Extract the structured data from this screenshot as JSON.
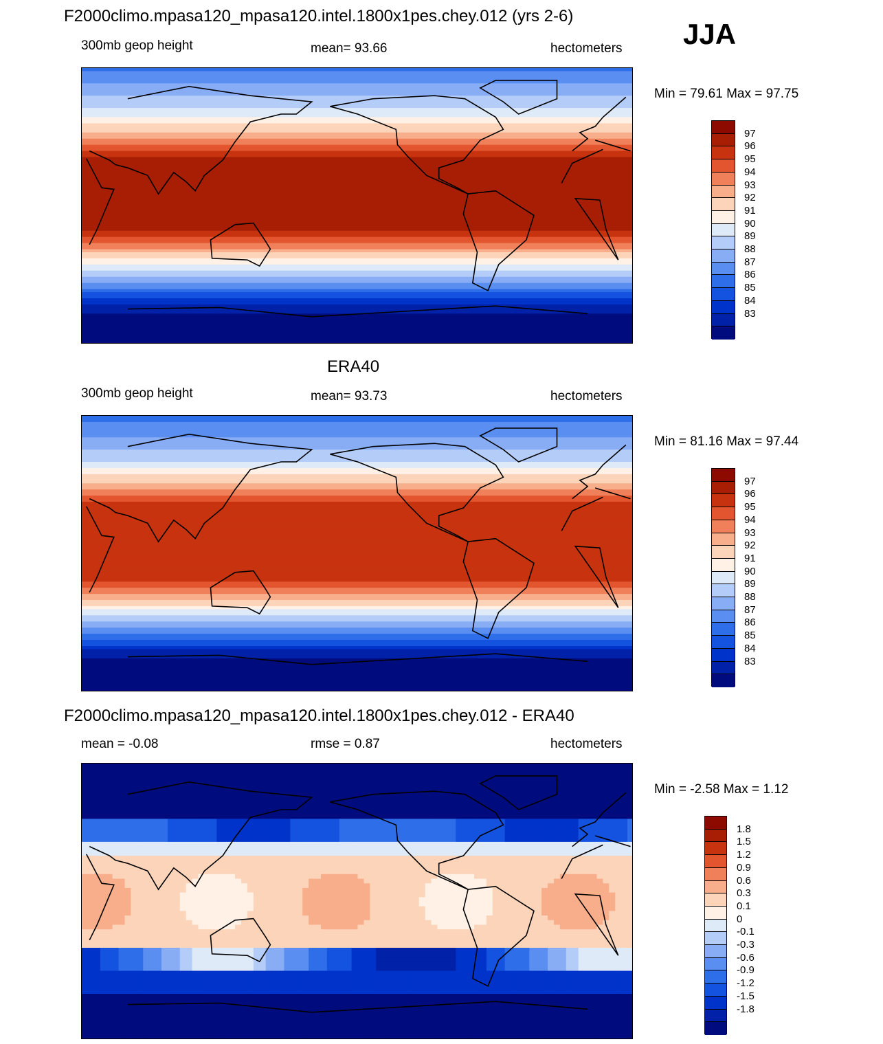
{
  "season": "JJA",
  "colorscale": {
    "height": [
      "#000c7d",
      "#0021a8",
      "#0033c9",
      "#1452e0",
      "#2e6ee8",
      "#5a8ef0",
      "#88adf5",
      "#b4cdf8",
      "#dfeaf9",
      "#fff1e6",
      "#fcd4ba",
      "#f8ae8a",
      "#f0805a",
      "#e3552e",
      "#c8330f",
      "#a81e05",
      "#8c0a00"
    ],
    "diff": [
      "#000c7d",
      "#0021a8",
      "#0033c9",
      "#1452e0",
      "#2e6ee8",
      "#5a8ef0",
      "#88adf5",
      "#b4cdf8",
      "#dfeaf9",
      "#fff1e6",
      "#fcd4ba",
      "#f8ae8a",
      "#f0805a",
      "#e3552e",
      "#c8330f",
      "#a81e05",
      "#8c0a00"
    ]
  },
  "panels": [
    {
      "title": "F2000climo.mpasa120_mpasa120.intel.1800x1pes.chey.012 (yrs 2-6)",
      "left_label": "300mb geop height",
      "center_label": "mean=  93.66",
      "right_label": "hectometers",
      "minmax": "Min =  79.61 Max =  97.75",
      "colorbar_labels": [
        "97",
        "96",
        "95",
        "94",
        "93",
        "92",
        "91",
        "90",
        "89",
        "88",
        "87",
        "86",
        "85",
        "84",
        "83"
      ],
      "colorbar_kind": "height",
      "field": "model"
    },
    {
      "title": "ERA40",
      "left_label": "300mb geop height",
      "center_label": "mean=  93.73",
      "right_label": "hectometers",
      "minmax": "Min =  81.16 Max =  97.44",
      "colorbar_labels": [
        "97",
        "96",
        "95",
        "94",
        "93",
        "92",
        "91",
        "90",
        "89",
        "88",
        "87",
        "86",
        "85",
        "84",
        "83"
      ],
      "colorbar_kind": "height",
      "field": "obs"
    },
    {
      "title": "F2000climo.mpasa120_mpasa120.intel.1800x1pes.chey.012 - ERA40",
      "left_label": "mean =  -0.08",
      "center_label": "rmse =   0.87",
      "right_label": "hectometers",
      "minmax": "Min =  -2.58 Max =   1.12",
      "colorbar_labels": [
        "1.8",
        "1.5",
        "1.2",
        "0.9",
        "0.6",
        "0.3",
        "0.1",
        "0",
        "-0.1",
        "-0.3",
        "-0.6",
        "-0.9",
        "-1.2",
        "-1.5",
        "-1.8"
      ],
      "colorbar_kind": "diff",
      "field": "diff"
    }
  ]
}
